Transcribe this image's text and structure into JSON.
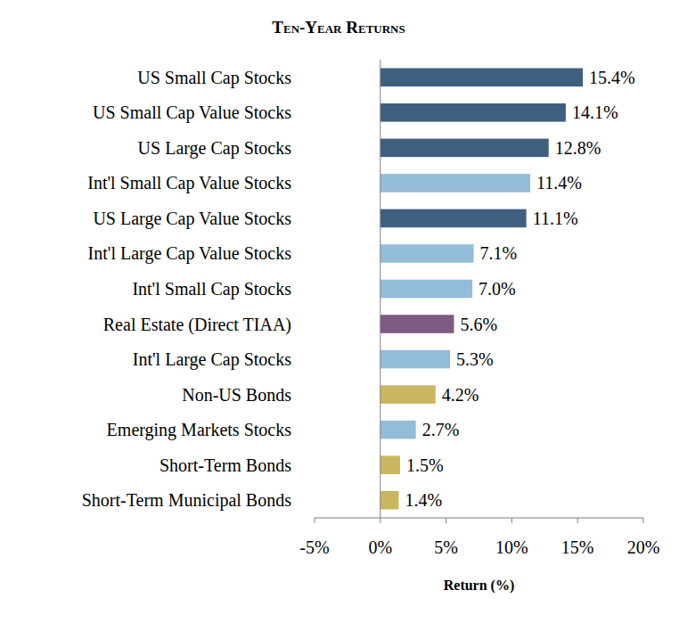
{
  "chart_data": {
    "type": "bar",
    "orientation": "horizontal",
    "title": "Ten-Year Returns",
    "x_label": "Return (%)",
    "categories": [
      "US Small Cap Stocks",
      "US Small Cap Value Stocks",
      "US Large Cap Stocks",
      "Int'l Small Cap Value Stocks",
      "US Large Cap Value Stocks",
      "Int'l Large Cap Value Stocks",
      "Int'l Small Cap Stocks",
      "Real Estate (Direct TIAA)",
      "Int'l Large Cap Stocks",
      "Non-US Bonds",
      "Emerging Markets Stocks",
      "Short-Term Bonds",
      "Short-Term Municipal Bonds"
    ],
    "values": [
      15.4,
      14.1,
      12.8,
      11.4,
      11.1,
      7.1,
      7.0,
      5.6,
      5.3,
      4.2,
      2.7,
      1.5,
      1.4
    ],
    "value_labels": [
      "15.4%",
      "14.1%",
      "12.8%",
      "11.4%",
      "11.1%",
      "7.1%",
      "7.0%",
      "5.6%",
      "5.3%",
      "4.2%",
      "2.7%",
      "1.5%",
      "1.4%"
    ],
    "colors": [
      "#3f5f7f",
      "#3f5f7f",
      "#3f5f7f",
      "#93bcd9",
      "#3f5f7f",
      "#93bcd9",
      "#93bcd9",
      "#7f5a83",
      "#93bcd9",
      "#c9b65f",
      "#93bcd9",
      "#c9b65f",
      "#c9b65f"
    ],
    "xlim": [
      -5,
      20
    ],
    "xticks": [
      {
        "value": -5,
        "label": "-5%"
      },
      {
        "value": 0,
        "label": "0%"
      },
      {
        "value": 5,
        "label": "5%"
      },
      {
        "value": 10,
        "label": "10%"
      },
      {
        "value": 15,
        "label": "15%"
      },
      {
        "value": 20,
        "label": "20%"
      }
    ],
    "data_labels": true,
    "grid": false
  }
}
